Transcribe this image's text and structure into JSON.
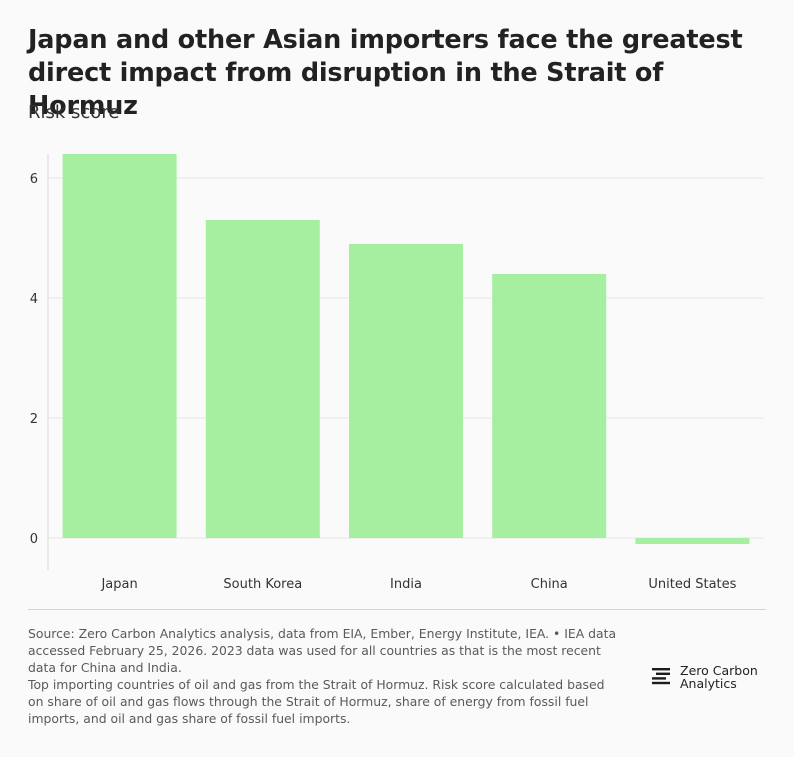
{
  "title": "Japan and other Asian importers face the greatest direct impact from disruption in the Strait of Hormuz",
  "subtitle": "Risk score",
  "chart_data": {
    "type": "bar",
    "categories": [
      "Japan",
      "South Korea",
      "India",
      "China",
      "United States"
    ],
    "values": [
      6.4,
      5.3,
      4.9,
      4.4,
      -0.1
    ],
    "ylim": [
      -0.3,
      6.4
    ],
    "yticks": [
      0,
      2,
      4,
      6
    ],
    "xlabel": "",
    "ylabel": "",
    "grid": true,
    "bar_color": "#a6eea0"
  },
  "footer": {
    "source": "Source: Zero Carbon Analytics analysis, data from EIA, Ember, Energy Institute, IEA. • IEA data accessed February 25, 2026. 2023 data was used for all countries as that is the most recent data for China and India.",
    "note": "Top importing countries of oil and gas from the Strait of Hormuz. Risk score calculated based on share of oil and gas flows through the Strait of Hormuz, share of energy from fossil fuel imports, and oil and gas share of fossil fuel imports."
  },
  "logo": {
    "line1": "Zero Carbon",
    "line2": "Analytics",
    "icon": "zero-carbon-analytics-logo-icon"
  }
}
